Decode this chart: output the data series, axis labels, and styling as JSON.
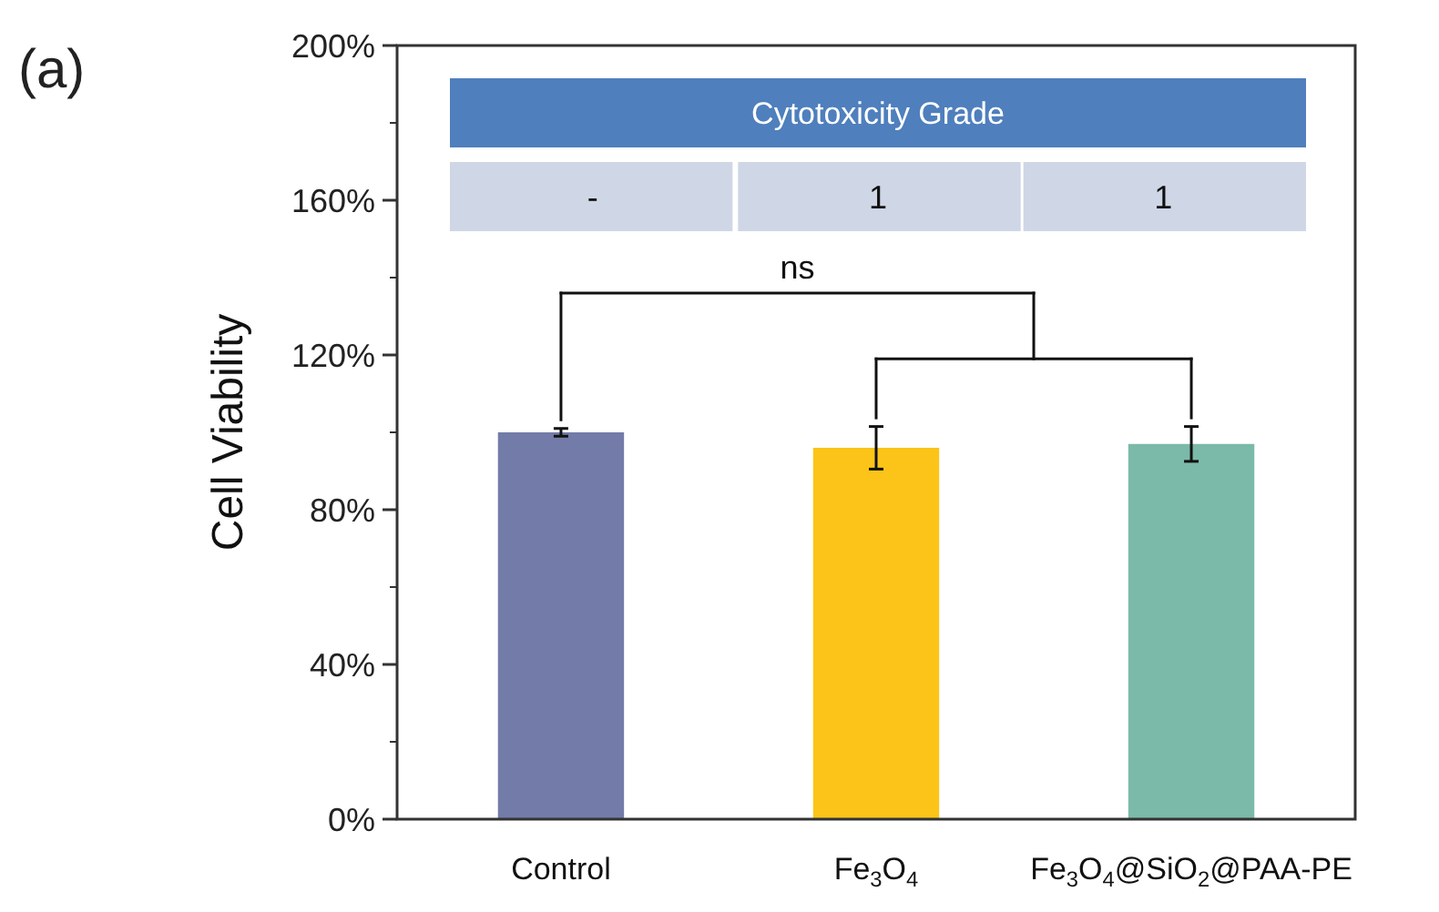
{
  "chart_data": {
    "type": "bar",
    "ylabel": "Cell Viability",
    "categories": [
      "Control",
      "Fe$_{3}$O$_{4}$",
      "Fe$_{3}$O$_{4}$@SiO$_{2}$@PAA-PE"
    ],
    "values": [
      100,
      96,
      97
    ],
    "errors": [
      1,
      5.5,
      4.5
    ],
    "colors": [
      "#737ba8",
      "#fcc419",
      "#7bbaa8"
    ],
    "ylim": [
      0,
      200
    ],
    "yticks": [
      {
        "value": 0,
        "label": "0%"
      },
      {
        "value": 40,
        "label": "40%"
      },
      {
        "value": 80,
        "label": "80%"
      },
      {
        "value": 120,
        "label": "120%"
      },
      {
        "value": 160,
        "label": "160%"
      },
      {
        "value": 200,
        "label": "200%"
      }
    ],
    "annotations": [
      "(a)",
      "Cytotoxicity Grade",
      "-",
      "1",
      "1",
      "ns"
    ]
  }
}
